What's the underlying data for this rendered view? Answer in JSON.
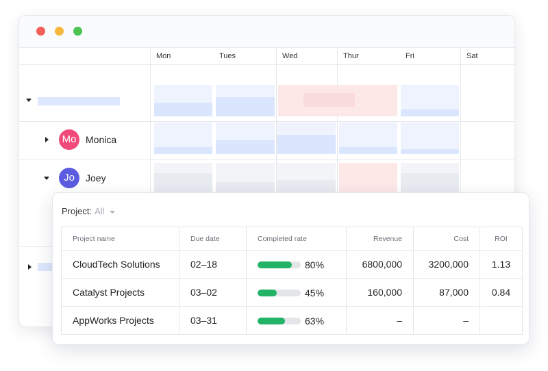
{
  "calendar": {
    "days": [
      "Mon",
      "Tues",
      "Wed",
      "Thur",
      "Fri",
      "Sat"
    ],
    "people": [
      {
        "initials": "Mo",
        "name": "Monica",
        "color": "#f0497a"
      },
      {
        "initials": "Jo",
        "name": "Joey",
        "color": "#5b5ce0"
      }
    ]
  },
  "panel": {
    "filter_label": "Project:",
    "filter_value": "All",
    "columns": [
      "Project name",
      "Due date",
      "Completed rate",
      "Revenue",
      "Cost",
      "ROI"
    ],
    "rows": [
      {
        "name": "CloudTech Solutions",
        "due": "02–18",
        "rate": 80,
        "rate_text": "80%",
        "revenue": "6800,000",
        "cost": "3200,000",
        "roi": "1.13"
      },
      {
        "name": "Catalyst Projects",
        "due": "03–02",
        "rate": 45,
        "rate_text": "45%",
        "revenue": "160,000",
        "cost": "87,000",
        "roi": "0.84"
      },
      {
        "name": "AppWorks Projects",
        "due": "03–31",
        "rate": 63,
        "rate_text": "63%",
        "revenue": "–",
        "cost": "–",
        "roi": ""
      }
    ],
    "progress_color": "#22b366"
  }
}
